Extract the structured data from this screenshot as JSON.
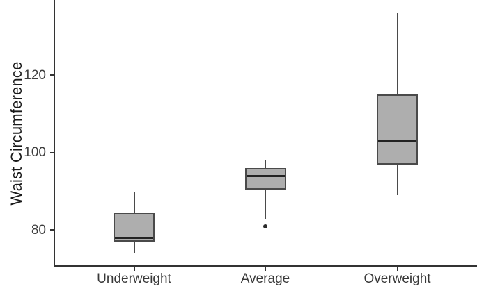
{
  "chart_data": {
    "type": "boxplot",
    "title": "",
    "xlabel": "",
    "ylabel": "Waist Circumference",
    "categories": [
      "Underweight",
      "Average",
      "Overweight"
    ],
    "y_ticks": [
      80,
      100,
      120
    ],
    "ylim": [
      70.5,
      139.5
    ],
    "grid": false,
    "legend": null,
    "series": [
      {
        "category": "Underweight",
        "whisker_low": 74,
        "q1": 77,
        "median": 78,
        "q3": 84.5,
        "whisker_high": 90,
        "outliers": []
      },
      {
        "category": "Average",
        "whisker_low": 83,
        "q1": 90.5,
        "median": 94,
        "q3": 96,
        "whisker_high": 98,
        "outliers": [
          81
        ]
      },
      {
        "category": "Overweight",
        "whisker_low": 89,
        "q1": 97,
        "median": 103,
        "q3": 115,
        "whisker_high": 136,
        "outliers": []
      }
    ],
    "colors": {
      "box_fill": "#aeaeae",
      "box_border": "#4a4a4a",
      "median": "#232323",
      "whisker": "#4a4a4a",
      "axis": "#333333",
      "tick_label": "#3d3d3d",
      "axis_label": "#1a1a1a",
      "outlier": "#2b2b2b",
      "background": "#ffffff"
    }
  }
}
